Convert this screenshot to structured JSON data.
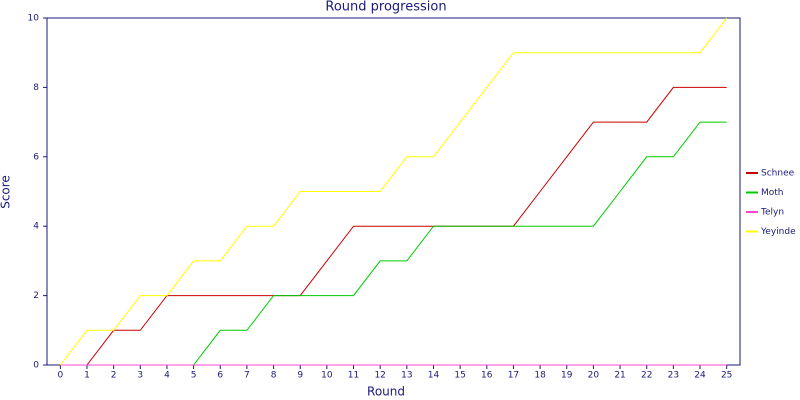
{
  "chart_data": {
    "type": "line",
    "title": "Round progression",
    "x_label": "Round",
    "y_label": "Score",
    "x": [
      0,
      1,
      2,
      3,
      4,
      5,
      6,
      7,
      8,
      9,
      10,
      11,
      12,
      13,
      14,
      15,
      16,
      17,
      18,
      19,
      20,
      21,
      22,
      23,
      24,
      25
    ],
    "xlim": [
      -0.5,
      25.5
    ],
    "xticks": [
      0,
      1,
      2,
      3,
      4,
      5,
      6,
      7,
      8,
      9,
      10,
      11,
      12,
      13,
      14,
      15,
      16,
      17,
      18,
      19,
      20,
      21,
      22,
      23,
      24,
      25
    ],
    "ylim": [
      0,
      10
    ],
    "yticks": [
      0,
      2,
      4,
      6,
      8,
      10
    ],
    "grid": false,
    "legend": "right",
    "series": [
      {
        "name": "Schnee",
        "color": "#cc0000",
        "values": [
          0,
          0,
          1,
          1,
          2,
          2,
          2,
          2,
          2,
          2,
          3,
          4,
          4,
          4,
          4,
          4,
          4,
          4,
          5,
          6,
          7,
          7,
          7,
          8,
          8,
          8
        ]
      },
      {
        "name": "Moth",
        "color": "#00cc00",
        "values": [
          0,
          0,
          0,
          0,
          0,
          0,
          1,
          1,
          2,
          2,
          2,
          2,
          3,
          3,
          4,
          4,
          4,
          4,
          4,
          4,
          4,
          5,
          6,
          6,
          7,
          7
        ]
      },
      {
        "name": "Telyn",
        "color": "#ff44cc",
        "values": [
          0,
          0,
          0,
          0,
          0,
          0,
          0,
          0,
          0,
          0,
          0,
          0,
          0,
          0,
          0,
          0,
          0,
          0,
          0,
          0,
          0,
          0,
          0,
          0,
          0,
          0
        ]
      },
      {
        "name": "Yeyinde",
        "color": "#ffff00",
        "values": [
          0,
          1,
          1,
          2,
          2,
          3,
          3,
          4,
          4,
          5,
          5,
          5,
          5,
          6,
          6,
          7,
          8,
          9,
          9,
          9,
          9,
          9,
          9,
          9,
          9,
          10
        ]
      }
    ]
  }
}
